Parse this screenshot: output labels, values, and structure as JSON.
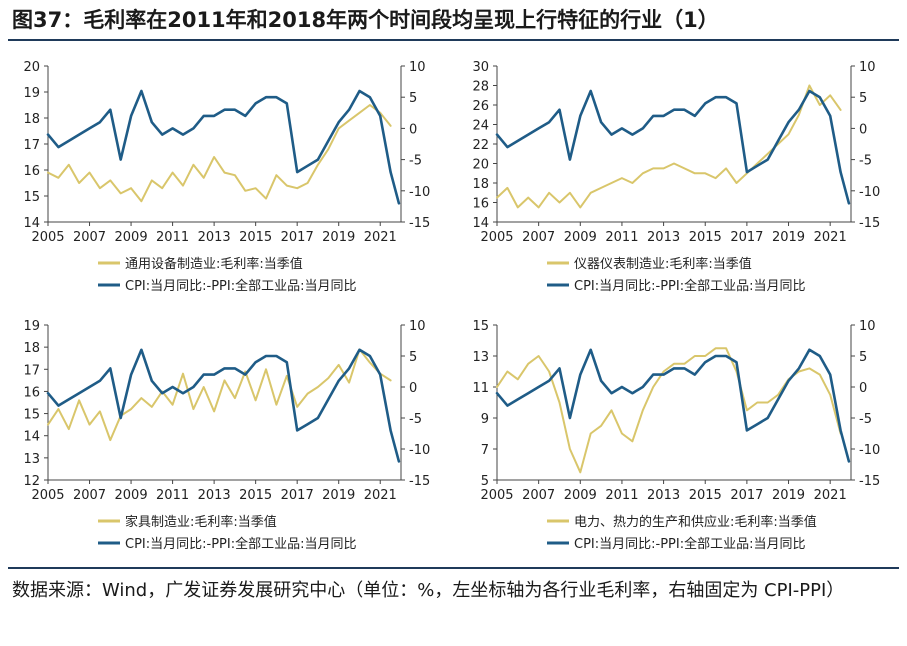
{
  "figure": {
    "title": "图37：毛利率在2011年和2018年两个时间段均呈现上行特征的行业（1）",
    "source": "数据来源：Wind，广发证券发展研究中心（单位：%，左坐标轴为各行业毛利率，右轴固定为 CPI-PPI）"
  },
  "colors": {
    "margin": "#D9C66B",
    "cpi": "#1F5C87"
  },
  "chart_data": [
    {
      "type": "line",
      "title": "",
      "x_ticks": [
        "2005",
        "2007",
        "2009",
        "2011",
        "2013",
        "2015",
        "2017",
        "2019",
        "2021"
      ],
      "x_range": [
        2005,
        2022
      ],
      "y_left": {
        "min": 14,
        "max": 20,
        "step": 1,
        "ticks": [
          "14",
          "15",
          "16",
          "17",
          "18",
          "19",
          "20"
        ]
      },
      "y_right": {
        "min": -15,
        "max": 10,
        "step": 5,
        "ticks": [
          "-15",
          "-10",
          "-5",
          "0",
          "5",
          "10"
        ]
      },
      "series": [
        {
          "name": "通用设备制造业:毛利率:当季值",
          "axis": "left",
          "x": [
            2005,
            2005.5,
            2006,
            2006.5,
            2007,
            2007.5,
            2008,
            2008.5,
            2009,
            2009.5,
            2010,
            2010.5,
            2011,
            2011.5,
            2012,
            2012.5,
            2013,
            2013.5,
            2014,
            2014.5,
            2015,
            2015.5,
            2016,
            2016.5,
            2017,
            2017.5,
            2018,
            2018.5,
            2019,
            2019.5,
            2020,
            2020.5,
            2021,
            2021.5
          ],
          "y": [
            15.9,
            15.7,
            16.2,
            15.5,
            15.9,
            15.3,
            15.6,
            15.1,
            15.3,
            14.8,
            15.6,
            15.3,
            15.9,
            15.4,
            16.2,
            15.7,
            16.5,
            15.9,
            15.8,
            15.2,
            15.3,
            14.9,
            15.8,
            15.4,
            15.3,
            15.5,
            16.2,
            16.8,
            17.6,
            17.9,
            18.2,
            18.5,
            18.2,
            17.7
          ]
        },
        {
          "name": "CPI:当月同比:-PPI:全部工业品:当月同比",
          "axis": "right",
          "x": [
            2005,
            2005.5,
            2006,
            2006.5,
            2007,
            2007.5,
            2008,
            2008.5,
            2009,
            2009.5,
            2010,
            2010.5,
            2011,
            2011.5,
            2012,
            2012.5,
            2013,
            2013.5,
            2014,
            2014.5,
            2015,
            2015.5,
            2016,
            2016.5,
            2017,
            2017.5,
            2018,
            2018.5,
            2019,
            2019.5,
            2020,
            2020.5,
            2021,
            2021.5,
            2021.9
          ],
          "y": [
            -1,
            -3,
            -2,
            -1,
            0,
            1,
            3,
            -5,
            2,
            6,
            1,
            -1,
            0,
            -1,
            0,
            2,
            2,
            3,
            3,
            2,
            4,
            5,
            5,
            4,
            -7,
            -6,
            -5,
            -2,
            1,
            3,
            6,
            5,
            2,
            -7,
            -12
          ]
        }
      ]
    },
    {
      "type": "line",
      "title": "",
      "x_ticks": [
        "2005",
        "2007",
        "2009",
        "2011",
        "2013",
        "2015",
        "2017",
        "2019",
        "2021"
      ],
      "x_range": [
        2005,
        2022
      ],
      "y_left": {
        "min": 14,
        "max": 30,
        "step": 2,
        "ticks": [
          "14",
          "16",
          "18",
          "20",
          "22",
          "24",
          "26",
          "28",
          "30"
        ]
      },
      "y_right": {
        "min": -15,
        "max": 10,
        "step": 5,
        "ticks": [
          "-15",
          "-10",
          "-5",
          "0",
          "5",
          "10"
        ]
      },
      "series": [
        {
          "name": "仪器仪表制造业:毛利率:当季值",
          "axis": "left",
          "x": [
            2005,
            2005.5,
            2006,
            2006.5,
            2007,
            2007.5,
            2008,
            2008.5,
            2009,
            2009.5,
            2010,
            2010.5,
            2011,
            2011.5,
            2012,
            2012.5,
            2013,
            2013.5,
            2014,
            2014.5,
            2015,
            2015.5,
            2016,
            2016.5,
            2017,
            2017.5,
            2018,
            2018.5,
            2019,
            2019.5,
            2020,
            2020.5,
            2021,
            2021.5
          ],
          "y": [
            16.5,
            17.5,
            15.5,
            16.5,
            15.5,
            17,
            16,
            17,
            15.5,
            17,
            17.5,
            18,
            18.5,
            18,
            19,
            19.5,
            19.5,
            20,
            19.5,
            19,
            19,
            18.5,
            19.5,
            18,
            19,
            20,
            21,
            22,
            23,
            25,
            28,
            26,
            27,
            25.5
          ]
        },
        {
          "name": "CPI:当月同比:-PPI:全部工业品:当月同比",
          "axis": "right",
          "x": [
            2005,
            2005.5,
            2006,
            2006.5,
            2007,
            2007.5,
            2008,
            2008.5,
            2009,
            2009.5,
            2010,
            2010.5,
            2011,
            2011.5,
            2012,
            2012.5,
            2013,
            2013.5,
            2014,
            2014.5,
            2015,
            2015.5,
            2016,
            2016.5,
            2017,
            2017.5,
            2018,
            2018.5,
            2019,
            2019.5,
            2020,
            2020.5,
            2021,
            2021.5,
            2021.9
          ],
          "y": [
            -1,
            -3,
            -2,
            -1,
            0,
            1,
            3,
            -5,
            2,
            6,
            1,
            -1,
            0,
            -1,
            0,
            2,
            2,
            3,
            3,
            2,
            4,
            5,
            5,
            4,
            -7,
            -6,
            -5,
            -2,
            1,
            3,
            6,
            5,
            2,
            -7,
            -12
          ]
        }
      ]
    },
    {
      "type": "line",
      "title": "",
      "x_ticks": [
        "2005",
        "2007",
        "2009",
        "2011",
        "2013",
        "2015",
        "2017",
        "2019",
        "2021"
      ],
      "x_range": [
        2005,
        2022
      ],
      "y_left": {
        "min": 12,
        "max": 19,
        "step": 1,
        "ticks": [
          "12",
          "13",
          "14",
          "15",
          "16",
          "17",
          "18",
          "19"
        ]
      },
      "y_right": {
        "min": -15,
        "max": 10,
        "step": 5,
        "ticks": [
          "-15",
          "-10",
          "-5",
          "0",
          "5",
          "10"
        ]
      },
      "series": [
        {
          "name": "家具制造业:毛利率:当季值",
          "axis": "left",
          "x": [
            2005,
            2005.5,
            2006,
            2006.5,
            2007,
            2007.5,
            2008,
            2008.5,
            2009,
            2009.5,
            2010,
            2010.5,
            2011,
            2011.5,
            2012,
            2012.5,
            2013,
            2013.5,
            2014,
            2014.5,
            2015,
            2015.5,
            2016,
            2016.5,
            2017,
            2017.5,
            2018,
            2018.5,
            2019,
            2019.5,
            2020,
            2020.5,
            2021,
            2021.5
          ],
          "y": [
            14.5,
            15.2,
            14.3,
            15.6,
            14.5,
            15.1,
            13.8,
            14.9,
            15.2,
            15.7,
            15.3,
            16,
            15.4,
            16.8,
            15.2,
            16.2,
            15.1,
            16.5,
            15.7,
            16.9,
            15.6,
            17,
            15.4,
            16.7,
            15.3,
            15.9,
            16.2,
            16.6,
            17.2,
            16.4,
            17.9,
            17.3,
            16.8,
            16.5
          ]
        },
        {
          "name": "CPI:当月同比:-PPI:全部工业品:当月同比",
          "axis": "right",
          "x": [
            2005,
            2005.5,
            2006,
            2006.5,
            2007,
            2007.5,
            2008,
            2008.5,
            2009,
            2009.5,
            2010,
            2010.5,
            2011,
            2011.5,
            2012,
            2012.5,
            2013,
            2013.5,
            2014,
            2014.5,
            2015,
            2015.5,
            2016,
            2016.5,
            2017,
            2017.5,
            2018,
            2018.5,
            2019,
            2019.5,
            2020,
            2020.5,
            2021,
            2021.5,
            2021.9
          ],
          "y": [
            -1,
            -3,
            -2,
            -1,
            0,
            1,
            3,
            -5,
            2,
            6,
            1,
            -1,
            0,
            -1,
            0,
            2,
            2,
            3,
            3,
            2,
            4,
            5,
            5,
            4,
            -7,
            -6,
            -5,
            -2,
            1,
            3,
            6,
            5,
            2,
            -7,
            -12
          ]
        }
      ]
    },
    {
      "type": "line",
      "title": "",
      "x_ticks": [
        "2005",
        "2007",
        "2009",
        "2011",
        "2013",
        "2015",
        "2017",
        "2019",
        "2021"
      ],
      "x_range": [
        2005,
        2022
      ],
      "y_left": {
        "min": 5,
        "max": 15,
        "step": 2,
        "ticks": [
          "5",
          "7",
          "9",
          "11",
          "13",
          "15"
        ]
      },
      "y_right": {
        "min": -15,
        "max": 10,
        "step": 5,
        "ticks": [
          "-15",
          "-10",
          "-5",
          "0",
          "5",
          "10"
        ]
      },
      "series": [
        {
          "name": "电力、热力的生产和供应业:毛利率:当季值",
          "axis": "left",
          "x": [
            2005,
            2005.5,
            2006,
            2006.5,
            2007,
            2007.5,
            2008,
            2008.5,
            2009,
            2009.5,
            2010,
            2010.5,
            2011,
            2011.5,
            2012,
            2012.5,
            2013,
            2013.5,
            2014,
            2014.5,
            2015,
            2015.5,
            2016,
            2016.5,
            2017,
            2017.5,
            2018,
            2018.5,
            2019,
            2019.5,
            2020,
            2020.5,
            2021,
            2021.5
          ],
          "y": [
            11,
            12,
            11.5,
            12.5,
            13,
            12,
            10,
            7,
            5.5,
            8,
            8.5,
            9.5,
            8,
            7.5,
            9.5,
            11,
            12,
            12.5,
            12.5,
            13,
            13,
            13.5,
            13.5,
            12,
            9.5,
            10,
            10,
            10.5,
            11.5,
            12,
            12.2,
            11.8,
            10.5,
            8
          ]
        },
        {
          "name": "CPI:当月同比:-PPI:全部工业品:当月同比",
          "axis": "right",
          "x": [
            2005,
            2005.5,
            2006,
            2006.5,
            2007,
            2007.5,
            2008,
            2008.5,
            2009,
            2009.5,
            2010,
            2010.5,
            2011,
            2011.5,
            2012,
            2012.5,
            2013,
            2013.5,
            2014,
            2014.5,
            2015,
            2015.5,
            2016,
            2016.5,
            2017,
            2017.5,
            2018,
            2018.5,
            2019,
            2019.5,
            2020,
            2020.5,
            2021,
            2021.5,
            2021.9
          ],
          "y": [
            -1,
            -3,
            -2,
            -1,
            0,
            1,
            3,
            -5,
            2,
            6,
            1,
            -1,
            0,
            -1,
            0,
            2,
            2,
            3,
            3,
            2,
            4,
            5,
            5,
            4,
            -7,
            -6,
            -5,
            -2,
            1,
            3,
            6,
            5,
            2,
            -7,
            -12
          ]
        }
      ]
    }
  ]
}
